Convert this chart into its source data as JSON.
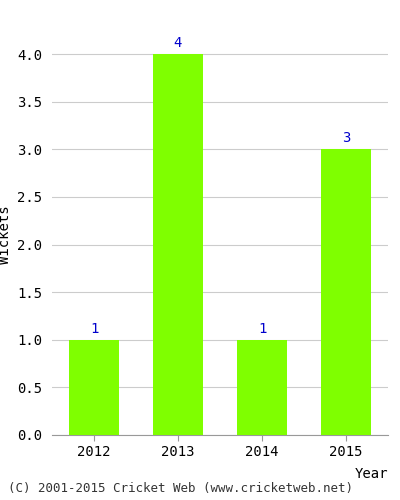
{
  "categories": [
    "2012",
    "2013",
    "2014",
    "2015"
  ],
  "values": [
    1,
    4,
    1,
    3
  ],
  "bar_color": "#7fff00",
  "bar_edge_color": "#7fff00",
  "xlabel": "Year",
  "ylabel": "Wickets",
  "ylim_max": 4.2,
  "yticks": [
    0.0,
    0.5,
    1.0,
    1.5,
    2.0,
    2.5,
    3.0,
    3.5,
    4.0
  ],
  "annotation_color": "#0000cc",
  "annotation_fontsize": 10,
  "axis_label_fontsize": 10,
  "tick_fontsize": 10,
  "background_color": "#ffffff",
  "footer_text": "(C) 2001-2015 Cricket Web (www.cricketweb.net)",
  "footer_fontsize": 9,
  "grid_color": "#cccccc",
  "bar_width": 0.6
}
